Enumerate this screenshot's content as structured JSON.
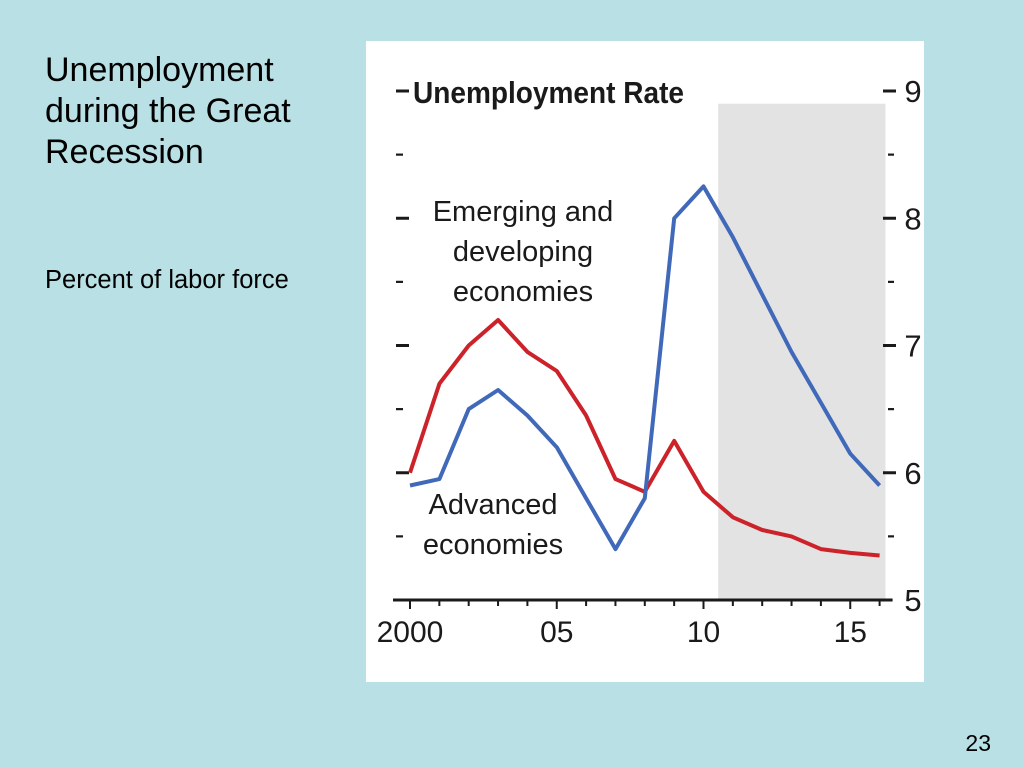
{
  "slide": {
    "title": "Unemployment during the Great Recession",
    "subtitle": "Percent of labor force",
    "page_number": "23"
  },
  "colors": {
    "slide_background": "#b9e0e4",
    "panel_background": "#ffffff",
    "axis": "#1a1a1a",
    "projection_shade": "#e3e3e3"
  },
  "chart_data": {
    "type": "line",
    "title": "Unemployment Rate",
    "x": [
      2000,
      2001,
      2002,
      2003,
      2004,
      2005,
      2006,
      2007,
      2008,
      2009,
      2010,
      2011,
      2012,
      2013,
      2014,
      2015,
      2016
    ],
    "xlim": [
      2000,
      2016
    ],
    "ylim": [
      5,
      9
    ],
    "x_ticks": {
      "values": [
        2000,
        2005,
        2010,
        2015
      ],
      "labels": [
        "2000",
        "05",
        "10",
        "15"
      ]
    },
    "y_ticks": {
      "values": [
        9,
        8,
        7,
        6,
        5
      ],
      "labels": [
        "9",
        "8",
        "7",
        "6",
        "5"
      ]
    },
    "y_minor_ticks": [
      8.5,
      7.5,
      6.5,
      5.5
    ],
    "y_axis_side": "right",
    "grid": false,
    "shaded_region": {
      "x_from": 2010.5,
      "x_to": 2016.2,
      "y_from": 5,
      "y_to": 8.9
    },
    "series": [
      {
        "name": "Emerging and developing economies",
        "color": "#cc2229",
        "values": [
          6.0,
          6.7,
          7.0,
          7.2,
          6.95,
          6.8,
          6.45,
          5.95,
          5.85,
          6.25,
          5.85,
          5.65,
          5.55,
          5.5,
          5.4,
          5.37,
          5.35
        ]
      },
      {
        "name": "Advanced economies",
        "color": "#4169b9",
        "values": [
          5.9,
          5.95,
          6.5,
          6.65,
          6.45,
          6.2,
          5.8,
          5.4,
          5.8,
          8.0,
          8.25,
          7.85,
          7.4,
          6.95,
          6.55,
          6.15,
          5.9
        ]
      }
    ]
  }
}
